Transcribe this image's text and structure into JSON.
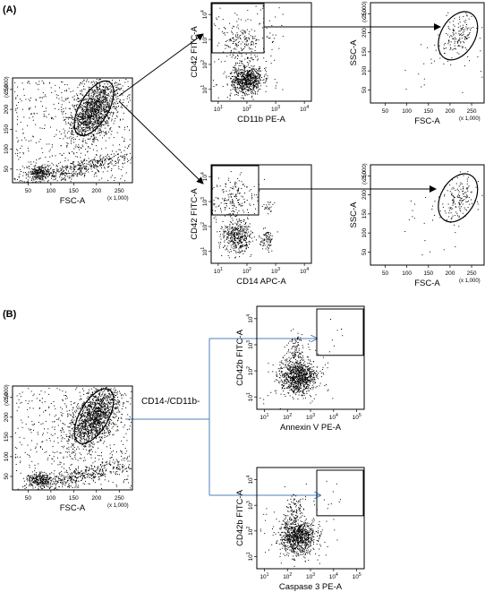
{
  "panels": {
    "a": {
      "label": "(A)"
    },
    "b": {
      "label": "(B)"
    }
  },
  "population_label": "CD14-/CD11b-",
  "scale_note": "(x 1,000)",
  "plots": [
    {
      "id": "a-src",
      "type": "scatter",
      "xlabel": "FSC-A",
      "ylabel": "SSC-A",
      "xticks": [
        "50",
        "100",
        "150",
        "200",
        "250"
      ],
      "yticks": [
        "50",
        "100",
        "150",
        "200",
        "250"
      ],
      "xscale": "linear-x1000",
      "yscale": "linear-x1000",
      "gate": "ellipse"
    },
    {
      "id": "a-top",
      "type": "scatter",
      "xlabel": "CD11b PE-A",
      "ylabel": "CD42 FITC-A",
      "xticks": [
        "10",
        "10",
        "10",
        "10"
      ],
      "xexp": [
        "1",
        "2",
        "3",
        "4"
      ],
      "yticks": [
        "10",
        "10",
        "10",
        "10"
      ],
      "yexp": [
        "1",
        "2",
        "3",
        "4"
      ],
      "xscale": "log",
      "yscale": "log",
      "gate": "rectangle-upper-left"
    },
    {
      "id": "a-top-out",
      "type": "scatter",
      "xlabel": "FSC-A",
      "ylabel": "SSC-A",
      "xticks": [
        "50",
        "100",
        "150",
        "200",
        "250"
      ],
      "yticks": [
        "50",
        "100",
        "150",
        "200",
        "250"
      ],
      "xscale": "linear-x1000",
      "yscale": "linear-x1000",
      "gate": "ellipse"
    },
    {
      "id": "a-bot",
      "type": "scatter",
      "xlabel": "CD14 APC-A",
      "ylabel": "CD42 FITC-A",
      "xticks": [
        "10",
        "10",
        "10",
        "10"
      ],
      "xexp": [
        "1",
        "2",
        "3",
        "4"
      ],
      "yticks": [
        "10",
        "10",
        "10",
        "10"
      ],
      "yexp": [
        "1",
        "2",
        "3",
        "4"
      ],
      "xscale": "log",
      "yscale": "log",
      "gate": "rectangle-upper-left"
    },
    {
      "id": "a-bot-out",
      "type": "scatter",
      "xlabel": "FSC-A",
      "ylabel": "SSC-A",
      "xticks": [
        "50",
        "100",
        "150",
        "200",
        "250"
      ],
      "yticks": [
        "50",
        "100",
        "150",
        "200",
        "250"
      ],
      "xscale": "linear-x1000",
      "yscale": "linear-x1000",
      "gate": "ellipse"
    },
    {
      "id": "b-src",
      "type": "scatter",
      "xlabel": "FSC-A",
      "ylabel": "SSC-A",
      "xticks": [
        "50",
        "100",
        "150",
        "200",
        "250"
      ],
      "yticks": [
        "50",
        "100",
        "150",
        "200",
        "250"
      ],
      "xscale": "linear-x1000",
      "yscale": "linear-x1000",
      "gate": "ellipse"
    },
    {
      "id": "b-top",
      "type": "scatter",
      "xlabel": "Annexin V PE-A",
      "ylabel": "CD42b FITC-A",
      "xticks": [
        "10",
        "10",
        "10",
        "10",
        "10"
      ],
      "xexp": [
        "1",
        "2",
        "3",
        "4",
        "5"
      ],
      "yticks": [
        "10",
        "10",
        "10",
        "10"
      ],
      "yexp": [
        "1",
        "2",
        "3",
        "4"
      ],
      "xscale": "log",
      "yscale": "log",
      "gate": "rectangle-upper-right"
    },
    {
      "id": "b-bot",
      "type": "scatter",
      "xlabel": "Caspase 3 PE-A",
      "ylabel": "CD42b FITC-A",
      "xticks": [
        "10",
        "10",
        "10",
        "10",
        "10"
      ],
      "xexp": [
        "1",
        "2",
        "3",
        "4",
        "5"
      ],
      "yticks": [
        "10",
        "10",
        "10",
        "10"
      ],
      "yexp": [
        "1",
        "2",
        "3",
        "4"
      ],
      "xscale": "log",
      "yscale": "log",
      "gate": "rectangle-upper-right"
    }
  ],
  "colors": {
    "ink": "#000000",
    "connector_b": "#4f81bd"
  }
}
